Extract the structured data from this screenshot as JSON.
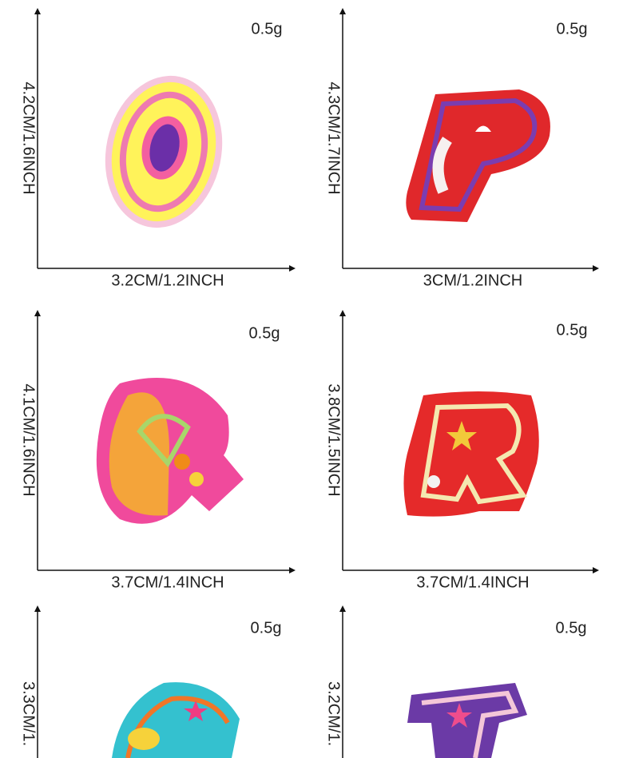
{
  "panels": [
    {
      "weight": "0.5g",
      "height": "4.2CM/1.6INCH",
      "width": "3.2CM/1.2INCH"
    },
    {
      "weight": "0.5g",
      "height": "4.3CM/1.7INCH",
      "width": "3CM/1.2INCH"
    },
    {
      "weight": "0.5g",
      "height": "4.1CM/1.6INCH",
      "width": "3.7CM/1.4INCH"
    },
    {
      "weight": "0.5g",
      "height": "3.8CM/1.5INCH",
      "width": "3.7CM/1.4INCH"
    },
    {
      "weight": "0.5g",
      "height": "3.3CM/1."
    },
    {
      "weight": "0.5g",
      "height": "3.2CM/1."
    }
  ]
}
